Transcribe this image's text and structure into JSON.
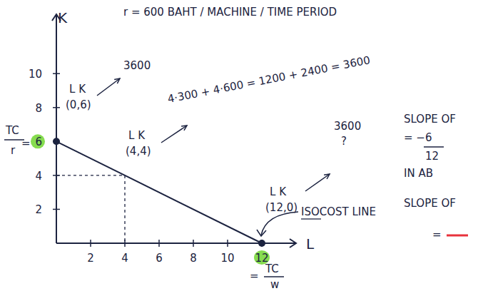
{
  "chart_data": {
    "type": "line",
    "title": "r = 600  BAHT / MACHINE / TIME PERIOD",
    "x_label": "L",
    "y_label": "K",
    "xlim": [
      0,
      14
    ],
    "ylim": [
      0,
      13.5
    ],
    "xticks": [
      2,
      4,
      6,
      8,
      10,
      12
    ],
    "yticks": [
      2,
      4,
      6,
      8,
      10
    ],
    "grid": false,
    "x": [
      0,
      4,
      12
    ],
    "series": [
      {
        "color": "#1c2340",
        "marker": "circle",
        "values": [
          6,
          4,
          0
        ]
      }
    ],
    "annotations": [
      "L K",
      "(0,6)",
      "3600",
      "L K",
      "(4,4)",
      "4·300 + 4·600 = 1200 + 2400 = 3600",
      "L K",
      "(12,0)",
      "3600",
      "?",
      "ISOCOST LINE",
      "TC",
      "r",
      "=",
      "=",
      "TC",
      "w",
      "SLOPE OF",
      "= −6",
      "12",
      "IN AB",
      "SLOPE OF",
      "="
    ]
  }
}
